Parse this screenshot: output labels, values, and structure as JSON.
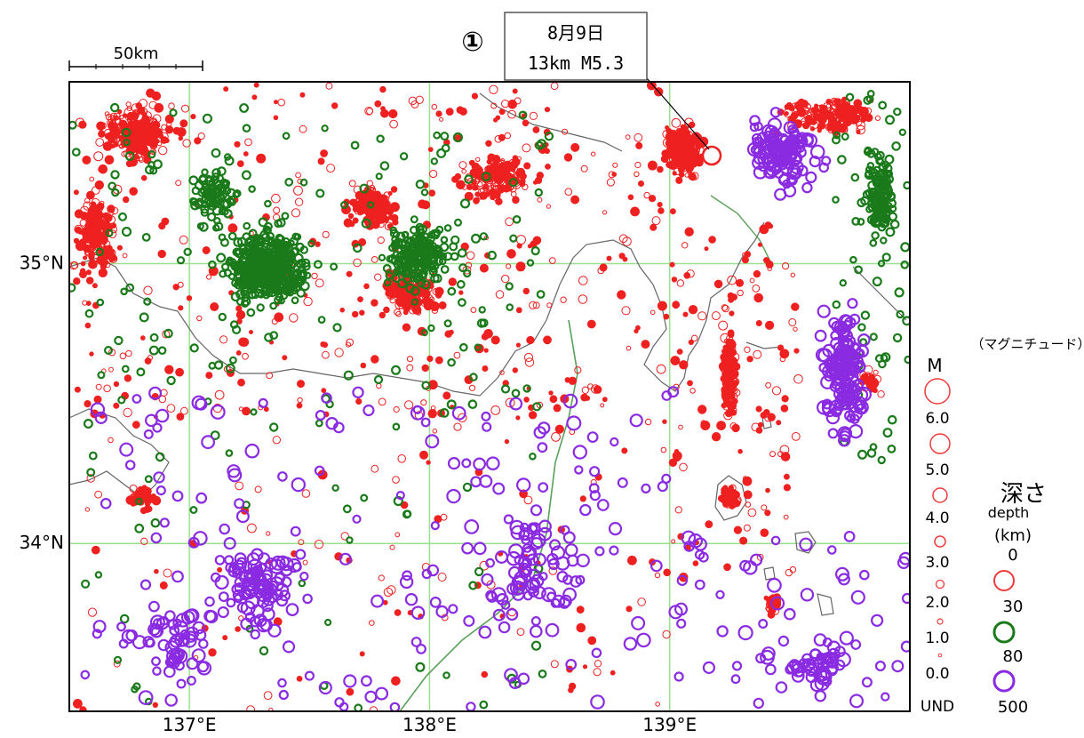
{
  "scale_bar": {
    "label": "50km"
  },
  "event": {
    "marker": "①",
    "date": "8月9日",
    "detail": "13km  M5.3",
    "lon": 139.15,
    "lat": 35.41,
    "depth_km": 13,
    "magnitude": 5.3
  },
  "axes": {
    "x_ticks": [
      {
        "value": 137,
        "label": "137°E"
      },
      {
        "value": 138,
        "label": "138°E"
      },
      {
        "value": 139,
        "label": "139°E"
      }
    ],
    "y_ticks": [
      {
        "value": 35,
        "label": "35°N"
      },
      {
        "value": 34,
        "label": "34°N"
      }
    ],
    "lon_range": [
      136.5,
      140.0
    ],
    "lat_range": [
      33.4,
      35.65
    ]
  },
  "magnitude_legend": {
    "title": "（マグニチュード）",
    "header": "M",
    "levels": [
      "6.0",
      "5.0",
      "4.0",
      "3.0",
      "2.0",
      "1.0",
      "0.0",
      "UND"
    ]
  },
  "depth_legend": {
    "title": "深さ",
    "subtitle_en": "depth",
    "unit": "(km)",
    "levels": [
      "0",
      "30",
      "80",
      "500"
    ],
    "colors": {
      "shallow": "#ee2020",
      "intermediate": "#1a7a1a",
      "deep": "#8a2be2"
    }
  },
  "colors": {
    "grid": "#9be08f",
    "coast": "#666666",
    "trench": "#5aa05a",
    "frame": "#000000"
  }
}
